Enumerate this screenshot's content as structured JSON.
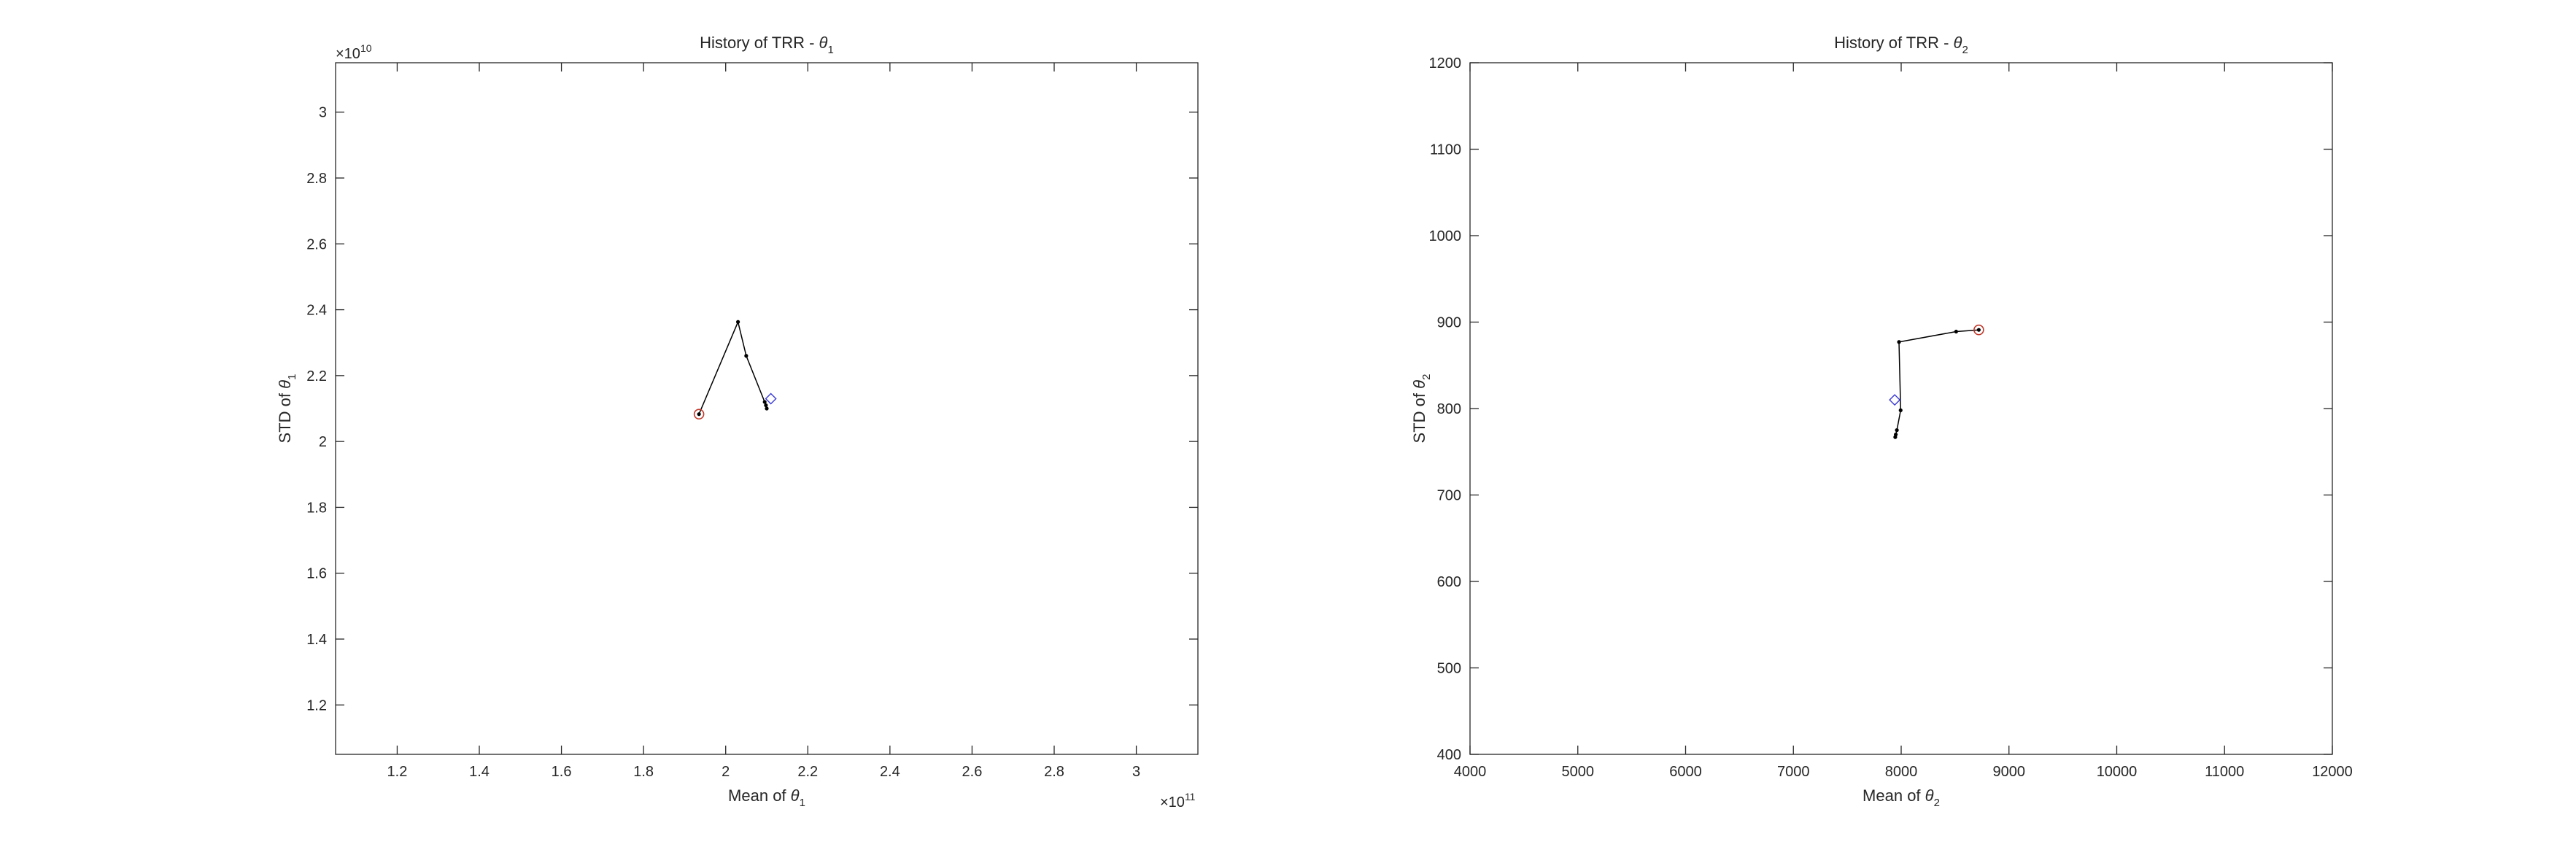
{
  "chart_data": [
    {
      "type": "line",
      "title": "History of TRR - ",
      "title_symbol": "θ",
      "title_subscript": "1",
      "xlabel": "Mean of ",
      "xlabel_symbol": "θ",
      "xlabel_subscript": "1",
      "ylabel": "STD of ",
      "ylabel_symbol": "θ",
      "ylabel_subscript": "1",
      "x_exponent_base": "×10",
      "x_exponent": "11",
      "y_exponent_base": "×10",
      "y_exponent": "10",
      "xlim": [
        1.05,
        3.15
      ],
      "ylim": [
        1.05,
        3.15
      ],
      "xticks": [
        1.2,
        1.4,
        1.6,
        1.8,
        2.0,
        2.2,
        2.4,
        2.6,
        2.8,
        3.0
      ],
      "xtick_labels": [
        "1.2",
        "1.4",
        "1.6",
        "1.8",
        "2",
        "2.2",
        "2.4",
        "2.6",
        "2.8",
        "3"
      ],
      "yticks": [
        1.2,
        1.4,
        1.6,
        1.8,
        2.0,
        2.2,
        2.4,
        2.6,
        2.8,
        3.0
      ],
      "ytick_labels": [
        "1.2",
        "1.4",
        "1.6",
        "1.8",
        "2",
        "2.2",
        "2.4",
        "2.6",
        "2.8",
        "3"
      ],
      "grid": false,
      "path": {
        "x": [
          1.935,
          2.03,
          2.05,
          2.095,
          2.098,
          2.1
        ],
        "y": [
          2.083,
          2.363,
          2.26,
          2.12,
          2.11,
          2.1
        ]
      },
      "start_marker": {
        "x": 1.935,
        "y": 2.083,
        "shape": "circle",
        "color": "#c0392b"
      },
      "reference_marker": {
        "x": 2.11,
        "y": 2.13,
        "shape": "diamond",
        "color": "#3b3bd6"
      }
    },
    {
      "type": "line",
      "title": "History of TRR - ",
      "title_symbol": "θ",
      "title_subscript": "2",
      "xlabel": "Mean of ",
      "xlabel_symbol": "θ",
      "xlabel_subscript": "2",
      "ylabel": "STD of ",
      "ylabel_symbol": "θ",
      "ylabel_subscript": "2",
      "xlim": [
        4000,
        12000
      ],
      "ylim": [
        400,
        1200
      ],
      "xticks": [
        4000,
        5000,
        6000,
        7000,
        8000,
        9000,
        10000,
        11000,
        12000
      ],
      "xtick_labels": [
        "4000",
        "5000",
        "6000",
        "7000",
        "8000",
        "9000",
        "10000",
        "11000",
        "12000"
      ],
      "yticks": [
        400,
        500,
        600,
        700,
        800,
        900,
        1000,
        1100,
        1200
      ],
      "ytick_labels": [
        "400",
        "500",
        "600",
        "700",
        "800",
        "900",
        "1000",
        "1100",
        "1200"
      ],
      "grid": false,
      "path": {
        "x": [
          8720,
          8510,
          7980,
          7995,
          7960,
          7950,
          7945
        ],
        "y": [
          891,
          889,
          877,
          798,
          775,
          770,
          767
        ]
      },
      "start_marker": {
        "x": 8720,
        "y": 891,
        "shape": "circle",
        "color": "#c0392b"
      },
      "reference_marker": {
        "x": 7940,
        "y": 810,
        "shape": "diamond",
        "color": "#3b3bd6"
      }
    }
  ]
}
